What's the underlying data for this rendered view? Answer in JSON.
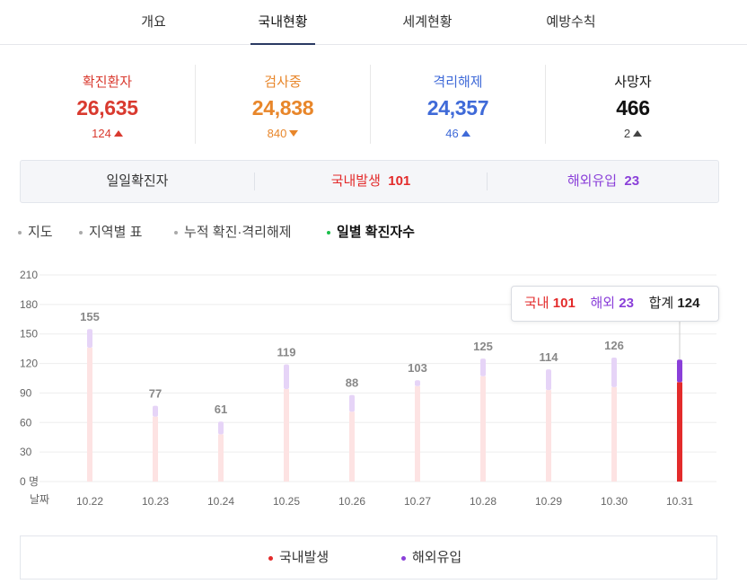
{
  "tabs": [
    {
      "label": "개요",
      "active": false
    },
    {
      "label": "국내현황",
      "active": true
    },
    {
      "label": "세계현황",
      "active": false
    },
    {
      "label": "예방수칙",
      "active": false
    }
  ],
  "stats": {
    "confirmed": {
      "label": "확진환자",
      "value": "26,635",
      "change": "124",
      "dir": "up",
      "color": "#d93a2f"
    },
    "testing": {
      "label": "검사중",
      "value": "24,838",
      "change": "840",
      "dir": "down",
      "color": "#e8862a"
    },
    "released": {
      "label": "격리해제",
      "value": "24,357",
      "change": "46",
      "dir": "up",
      "color": "#3f6ad8"
    },
    "deceased": {
      "label": "사망자",
      "value": "466",
      "change": "2",
      "dir": "up",
      "color": "#111111"
    }
  },
  "daily": {
    "label": "일일확진자",
    "domestic_label": "국내발생",
    "domestic_value": "101",
    "overseas_label": "해외유입",
    "overseas_value": "23"
  },
  "subnav": [
    {
      "label": "지도",
      "active": false
    },
    {
      "label": "지역별 표",
      "active": false
    },
    {
      "label": "누적 확진·격리해제",
      "active": false
    },
    {
      "label": "일별 확진자수",
      "active": true
    }
  ],
  "colors": {
    "domestic": "#e32b2b",
    "overseas": "#8a3fd9",
    "domestic_faded": "#fde3e3",
    "overseas_faded": "#e6d4f7"
  },
  "chart_data": {
    "type": "bar",
    "stacked": true,
    "categories": [
      "10.22",
      "10.23",
      "10.24",
      "10.25",
      "10.26",
      "10.27",
      "10.28",
      "10.29",
      "10.30",
      "10.31"
    ],
    "series": [
      {
        "name": "국내발생",
        "values": [
          136,
          66,
          48,
          94,
          71,
          97,
          107,
          93,
          96,
          101
        ]
      },
      {
        "name": "해외유입",
        "values": [
          19,
          11,
          13,
          25,
          17,
          6,
          18,
          21,
          30,
          23
        ]
      }
    ],
    "totals": [
      "155",
      "77",
      "61",
      "119",
      "88",
      "103",
      "125",
      "114",
      "126",
      ""
    ],
    "highlight_index": 9,
    "y_ticks": [
      "0 명",
      "30",
      "60",
      "90",
      "120",
      "150",
      "180",
      "210"
    ],
    "ylim": [
      0,
      210
    ],
    "xlabel": "날짜",
    "grid": true,
    "legend_position": "bottom-center"
  },
  "tooltip": {
    "domestic_label": "국내",
    "domestic_value": "101",
    "overseas_label": "해외",
    "overseas_value": "23",
    "total_label": "합계",
    "total_value": "124"
  },
  "legend": [
    {
      "label": "국내발생"
    },
    {
      "label": "해외유입"
    }
  ]
}
